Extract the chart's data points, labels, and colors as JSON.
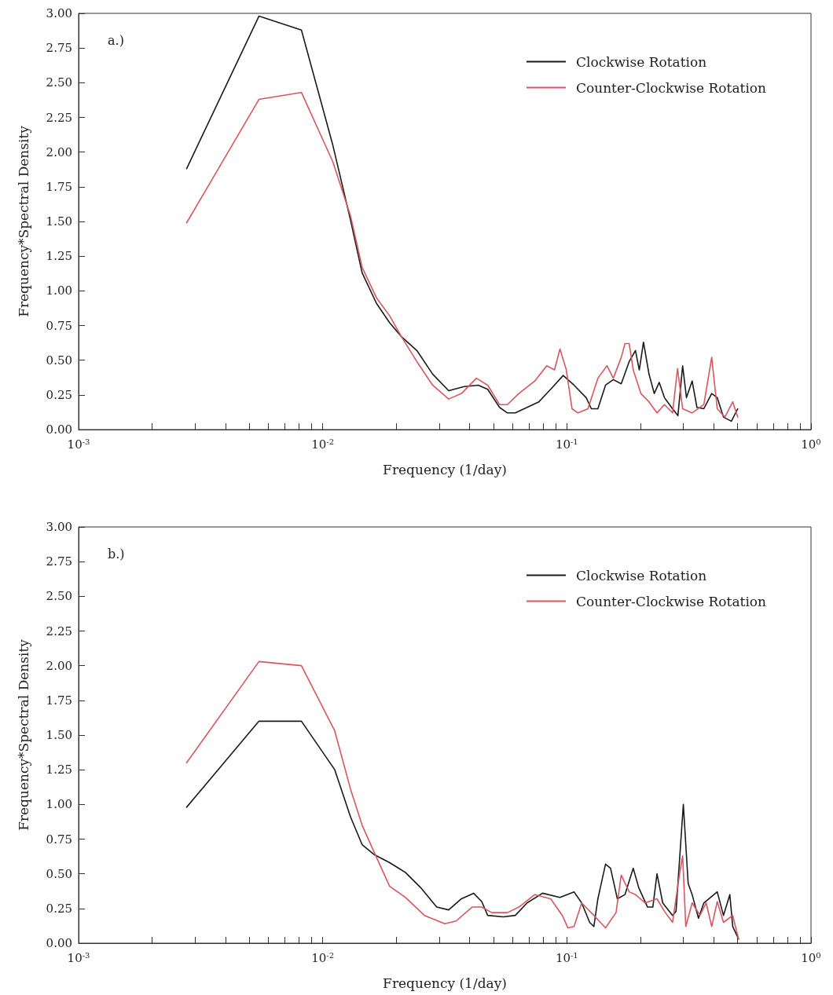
{
  "chart_data": [
    {
      "type": "line",
      "log": "x",
      "xlabel": "Frequency (1/day)",
      "ylabel": "Frequency*Spectral Density",
      "annotations": [
        "a.)"
      ],
      "legend": "top right",
      "marker": "none",
      "line_style": "solid",
      "xlim": [
        0.001,
        1
      ],
      "ylim": [
        0,
        3
      ],
      "xticks": [
        {
          "value": 0.001,
          "label": "10$^{-3}$"
        },
        {
          "value": 0.002,
          "label": null
        },
        {
          "value": 0.003,
          "label": null
        },
        {
          "value": 0.004,
          "label": null
        },
        {
          "value": 0.005,
          "label": null
        },
        {
          "value": 0.006,
          "label": null
        },
        {
          "value": 0.007,
          "label": null
        },
        {
          "value": 0.008,
          "label": null
        },
        {
          "value": 0.009,
          "label": null
        },
        {
          "value": 0.01,
          "label": "10$^{-2}$"
        },
        {
          "value": 0.02,
          "label": null
        },
        {
          "value": 0.03,
          "label": null
        },
        {
          "value": 0.04,
          "label": null
        },
        {
          "value": 0.05,
          "label": null
        },
        {
          "value": 0.06,
          "label": null
        },
        {
          "value": 0.07,
          "label": null
        },
        {
          "value": 0.08,
          "label": null
        },
        {
          "value": 0.09,
          "label": null
        },
        {
          "value": 0.1,
          "label": "10$^{-1}$"
        },
        {
          "value": 0.2,
          "label": null
        },
        {
          "value": 0.3,
          "label": null
        },
        {
          "value": 0.4,
          "label": null
        },
        {
          "value": 0.5,
          "label": null
        },
        {
          "value": 0.6,
          "label": null
        },
        {
          "value": 0.7,
          "label": null
        },
        {
          "value": 0.8,
          "label": null
        },
        {
          "value": 0.9,
          "label": null
        },
        {
          "value": 1,
          "label": "10$^{0}$"
        }
      ],
      "yticks": [
        {
          "value": 0,
          "label": "0.00"
        },
        {
          "value": 0.25,
          "label": "0.25"
        },
        {
          "value": 0.5,
          "label": "0.50"
        },
        {
          "value": 0.75,
          "label": "0.75"
        },
        {
          "value": 1,
          "label": "1.00"
        },
        {
          "value": 1.25,
          "label": "1.25"
        },
        {
          "value": 1.5,
          "label": "1.50"
        },
        {
          "value": 1.75,
          "label": "1.75"
        },
        {
          "value": 2,
          "label": "2.00"
        },
        {
          "value": 2.25,
          "label": "2.25"
        },
        {
          "value": 2.5,
          "label": "2.50"
        },
        {
          "value": 2.75,
          "label": "2.75"
        },
        {
          "value": 3,
          "label": "3.00"
        }
      ],
      "series": [
        {
          "name": "Clockwise Rotation",
          "color": "#1a1a1a",
          "x": [
            0.00277,
            0.00548,
            0.00818,
            0.011,
            0.013,
            0.0145,
            0.0166,
            0.0188,
            0.021,
            0.0243,
            0.0282,
            0.0328,
            0.038,
            0.0434,
            0.0474,
            0.053,
            0.0571,
            0.0615,
            0.0687,
            0.0768,
            0.0858,
            0.0966,
            0.107,
            0.12,
            0.126,
            0.134,
            0.144,
            0.155,
            0.167,
            0.18,
            0.191,
            0.198,
            0.206,
            0.217,
            0.228,
            0.239,
            0.251,
            0.271,
            0.285,
            0.298,
            0.309,
            0.326,
            0.341,
            0.364,
            0.392,
            0.413,
            0.438,
            0.472,
            0.501
          ],
          "values": [
            1.88,
            2.98,
            2.88,
            2.05,
            1.51,
            1.13,
            0.91,
            0.77,
            0.67,
            0.57,
            0.4,
            0.28,
            0.31,
            0.32,
            0.29,
            0.16,
            0.12,
            0.12,
            0.16,
            0.2,
            0.29,
            0.39,
            0.32,
            0.23,
            0.15,
            0.15,
            0.32,
            0.36,
            0.33,
            0.49,
            0.57,
            0.43,
            0.63,
            0.4,
            0.26,
            0.34,
            0.23,
            0.15,
            0.1,
            0.46,
            0.23,
            0.35,
            0.16,
            0.15,
            0.26,
            0.23,
            0.09,
            0.06,
            0.15
          ]
        },
        {
          "name": "Counter-Clockwise Rotation",
          "color": "#d9565f",
          "x": [
            0.00277,
            0.00548,
            0.00818,
            0.011,
            0.013,
            0.0145,
            0.0166,
            0.0188,
            0.021,
            0.0243,
            0.0282,
            0.0328,
            0.037,
            0.0426,
            0.0474,
            0.053,
            0.0571,
            0.0636,
            0.0739,
            0.0827,
            0.089,
            0.0937,
            0.0995,
            0.105,
            0.111,
            0.122,
            0.134,
            0.146,
            0.155,
            0.167,
            0.173,
            0.18,
            0.187,
            0.201,
            0.217,
            0.234,
            0.251,
            0.271,
            0.284,
            0.298,
            0.326,
            0.364,
            0.392,
            0.413,
            0.444,
            0.478,
            0.501
          ],
          "values": [
            1.49,
            2.38,
            2.43,
            1.93,
            1.54,
            1.17,
            0.95,
            0.82,
            0.67,
            0.49,
            0.32,
            0.22,
            0.26,
            0.37,
            0.32,
            0.18,
            0.18,
            0.26,
            0.35,
            0.46,
            0.43,
            0.58,
            0.43,
            0.15,
            0.12,
            0.15,
            0.37,
            0.46,
            0.37,
            0.52,
            0.62,
            0.62,
            0.43,
            0.26,
            0.2,
            0.12,
            0.18,
            0.12,
            0.44,
            0.15,
            0.12,
            0.18,
            0.52,
            0.15,
            0.09,
            0.2,
            0.09
          ]
        }
      ]
    },
    {
      "type": "line",
      "log": "x",
      "xlabel": "Frequency (1/day)",
      "ylabel": "Frequency*Spectral Density",
      "annotations": [
        "b.)"
      ],
      "legend": "top right",
      "marker": "none",
      "line_style": "solid",
      "xlim": [
        0.001,
        1
      ],
      "ylim": [
        0,
        3
      ],
      "xticks": [
        {
          "value": 0.001,
          "label": "10$^{-3}$"
        },
        {
          "value": 0.002,
          "label": null
        },
        {
          "value": 0.003,
          "label": null
        },
        {
          "value": 0.004,
          "label": null
        },
        {
          "value": 0.005,
          "label": null
        },
        {
          "value": 0.006,
          "label": null
        },
        {
          "value": 0.007,
          "label": null
        },
        {
          "value": 0.008,
          "label": null
        },
        {
          "value": 0.009,
          "label": null
        },
        {
          "value": 0.01,
          "label": "10$^{-2}$"
        },
        {
          "value": 0.02,
          "label": null
        },
        {
          "value": 0.03,
          "label": null
        },
        {
          "value": 0.04,
          "label": null
        },
        {
          "value": 0.05,
          "label": null
        },
        {
          "value": 0.06,
          "label": null
        },
        {
          "value": 0.07,
          "label": null
        },
        {
          "value": 0.08,
          "label": null
        },
        {
          "value": 0.09,
          "label": null
        },
        {
          "value": 0.1,
          "label": "10$^{-1}$"
        },
        {
          "value": 0.2,
          "label": null
        },
        {
          "value": 0.3,
          "label": null
        },
        {
          "value": 0.4,
          "label": null
        },
        {
          "value": 0.5,
          "label": null
        },
        {
          "value": 0.6,
          "label": null
        },
        {
          "value": 0.7,
          "label": null
        },
        {
          "value": 0.8,
          "label": null
        },
        {
          "value": 0.9,
          "label": null
        },
        {
          "value": 1,
          "label": "10$^{0}$"
        }
      ],
      "yticks": [
        {
          "value": 0,
          "label": "0.00"
        },
        {
          "value": 0.25,
          "label": "0.25"
        },
        {
          "value": 0.5,
          "label": "0.50"
        },
        {
          "value": 0.75,
          "label": "0.75"
        },
        {
          "value": 1,
          "label": "1.00"
        },
        {
          "value": 1.25,
          "label": "1.25"
        },
        {
          "value": 1.5,
          "label": "1.50"
        },
        {
          "value": 1.75,
          "label": "1.75"
        },
        {
          "value": 2,
          "label": "2.00"
        },
        {
          "value": 2.25,
          "label": "2.25"
        },
        {
          "value": 2.5,
          "label": "2.50"
        },
        {
          "value": 2.75,
          "label": "2.75"
        },
        {
          "value": 3,
          "label": "3.00"
        }
      ],
      "series": [
        {
          "name": "Clockwise Rotation",
          "color": "#1a1a1a",
          "x": [
            0.00277,
            0.00548,
            0.00818,
            0.0112,
            0.013,
            0.0145,
            0.0162,
            0.0188,
            0.0218,
            0.0252,
            0.0293,
            0.0328,
            0.037,
            0.0415,
            0.0448,
            0.0474,
            0.0549,
            0.0615,
            0.0687,
            0.0795,
            0.0937,
            0.107,
            0.115,
            0.124,
            0.129,
            0.134,
            0.144,
            0.151,
            0.161,
            0.173,
            0.187,
            0.197,
            0.214,
            0.225,
            0.234,
            0.247,
            0.271,
            0.28,
            0.3,
            0.314,
            0.326,
            0.346,
            0.364,
            0.413,
            0.438,
            0.465,
            0.478,
            0.505
          ],
          "values": [
            0.98,
            1.6,
            1.6,
            1.25,
            0.91,
            0.71,
            0.64,
            0.58,
            0.51,
            0.4,
            0.26,
            0.24,
            0.32,
            0.36,
            0.3,
            0.2,
            0.19,
            0.2,
            0.29,
            0.36,
            0.33,
            0.37,
            0.29,
            0.15,
            0.12,
            0.32,
            0.57,
            0.54,
            0.32,
            0.35,
            0.54,
            0.4,
            0.26,
            0.26,
            0.5,
            0.29,
            0.2,
            0.23,
            1.0,
            0.43,
            0.35,
            0.18,
            0.29,
            0.37,
            0.2,
            0.35,
            0.12,
            0.03
          ]
        },
        {
          "name": "Counter-Clockwise Rotation",
          "color": "#d9565f",
          "x": [
            0.00277,
            0.00548,
            0.00818,
            0.0112,
            0.013,
            0.0145,
            0.0162,
            0.0188,
            0.0218,
            0.0261,
            0.0316,
            0.0352,
            0.0409,
            0.0448,
            0.0493,
            0.0571,
            0.0636,
            0.0739,
            0.0858,
            0.0958,
            0.101,
            0.107,
            0.115,
            0.129,
            0.144,
            0.159,
            0.167,
            0.18,
            0.191,
            0.209,
            0.234,
            0.251,
            0.271,
            0.289,
            0.298,
            0.307,
            0.326,
            0.351,
            0.372,
            0.392,
            0.413,
            0.438,
            0.478,
            0.505
          ],
          "values": [
            1.3,
            2.03,
            2.0,
            1.53,
            1.11,
            0.85,
            0.66,
            0.41,
            0.33,
            0.2,
            0.14,
            0.16,
            0.26,
            0.26,
            0.22,
            0.22,
            0.26,
            0.35,
            0.32,
            0.2,
            0.11,
            0.12,
            0.29,
            0.2,
            0.11,
            0.22,
            0.49,
            0.37,
            0.35,
            0.29,
            0.32,
            0.23,
            0.15,
            0.49,
            0.63,
            0.12,
            0.29,
            0.2,
            0.29,
            0.12,
            0.3,
            0.15,
            0.2,
            0.03
          ]
        }
      ]
    }
  ]
}
